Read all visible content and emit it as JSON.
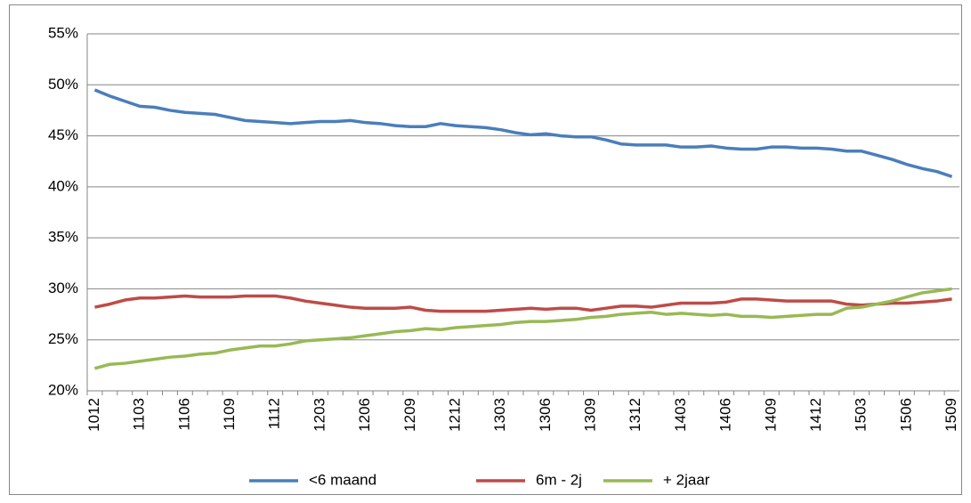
{
  "chart_data": {
    "type": "line",
    "categories": [
      "1012",
      null,
      null,
      "1103",
      null,
      null,
      "1106",
      null,
      null,
      "1109",
      null,
      null,
      "1112",
      null,
      null,
      "1203",
      null,
      null,
      "1206",
      null,
      null,
      "1209",
      null,
      null,
      "1212",
      null,
      null,
      "1303",
      null,
      null,
      "1306",
      null,
      null,
      "1309",
      null,
      null,
      "1312",
      null,
      null,
      "1403",
      null,
      null,
      "1406",
      null,
      null,
      "1409",
      null,
      null,
      "1412",
      null,
      null,
      "1503",
      null,
      null,
      "1506",
      null,
      null,
      "1509"
    ],
    "series": [
      {
        "name": "<6 maand",
        "color": "#4a7ebb",
        "values": [
          49.5,
          48.9,
          48.4,
          47.9,
          47.8,
          47.5,
          47.3,
          47.2,
          47.1,
          46.8,
          46.5,
          46.4,
          46.3,
          46.2,
          46.3,
          46.4,
          46.4,
          46.5,
          46.3,
          46.2,
          46.0,
          45.9,
          45.9,
          46.2,
          46.0,
          45.9,
          45.8,
          45.6,
          45.3,
          45.1,
          45.2,
          45.0,
          44.9,
          44.9,
          44.6,
          44.2,
          44.1,
          44.1,
          44.1,
          43.9,
          43.9,
          44.0,
          43.8,
          43.7,
          43.7,
          43.9,
          43.9,
          43.8,
          43.8,
          43.7,
          43.5,
          43.5,
          43.1,
          42.7,
          42.2,
          41.8,
          41.5,
          41.0
        ]
      },
      {
        "name": "6m - 2j",
        "color": "#be4b48",
        "values": [
          28.2,
          28.5,
          28.9,
          29.1,
          29.1,
          29.2,
          29.3,
          29.2,
          29.2,
          29.2,
          29.3,
          29.3,
          29.3,
          29.1,
          28.8,
          28.6,
          28.4,
          28.2,
          28.1,
          28.1,
          28.1,
          28.2,
          27.9,
          27.8,
          27.8,
          27.8,
          27.8,
          27.9,
          28.0,
          28.1,
          28.0,
          28.1,
          28.1,
          27.9,
          28.1,
          28.3,
          28.3,
          28.2,
          28.4,
          28.6,
          28.6,
          28.6,
          28.7,
          29.0,
          29.0,
          28.9,
          28.8,
          28.8,
          28.8,
          28.8,
          28.5,
          28.4,
          28.5,
          28.6,
          28.6,
          28.7,
          28.8,
          29.0
        ]
      },
      {
        "name": "+ 2jaar",
        "color": "#98b954",
        "values": [
          22.2,
          22.6,
          22.7,
          22.9,
          23.1,
          23.3,
          23.4,
          23.6,
          23.7,
          24.0,
          24.2,
          24.4,
          24.4,
          24.6,
          24.9,
          25.0,
          25.1,
          25.2,
          25.4,
          25.6,
          25.8,
          25.9,
          26.1,
          26.0,
          26.2,
          26.3,
          26.4,
          26.5,
          26.7,
          26.8,
          26.8,
          26.9,
          27.0,
          27.2,
          27.3,
          27.5,
          27.6,
          27.7,
          27.5,
          27.6,
          27.5,
          27.4,
          27.5,
          27.3,
          27.3,
          27.2,
          27.3,
          27.4,
          27.5,
          27.5,
          28.1,
          28.2,
          28.5,
          28.8,
          29.2,
          29.6,
          29.8,
          30.0
        ]
      }
    ],
    "ylim": [
      20,
      55
    ],
    "yticks": [
      {
        "value": 20,
        "label": "20%"
      },
      {
        "value": 25,
        "label": "25%"
      },
      {
        "value": 30,
        "label": "30%"
      },
      {
        "value": 35,
        "label": "35%"
      },
      {
        "value": 40,
        "label": "40%"
      },
      {
        "value": 45,
        "label": "45%"
      },
      {
        "value": 50,
        "label": "50%"
      },
      {
        "value": 55,
        "label": "55%"
      }
    ],
    "grid": true,
    "legend": "bottom"
  }
}
